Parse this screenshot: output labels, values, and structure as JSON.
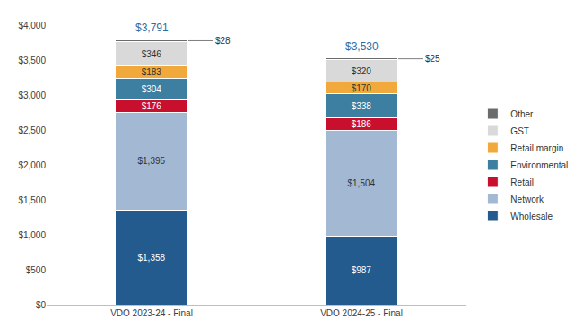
{
  "chart_data": {
    "type": "bar",
    "stacked": true,
    "data_labels": true,
    "grid": false,
    "legend": "right",
    "categories": [
      "VDO 2023-24 - Final",
      "VDO 2024-25 - Final"
    ],
    "series": [
      {
        "name": "Wholesale",
        "color": "#245b8f",
        "values": [
          1358,
          987
        ],
        "value_labels": [
          "$1,358",
          "$987"
        ]
      },
      {
        "name": "Network",
        "color": "#a2b8d3",
        "values": [
          1395,
          1504
        ],
        "value_labels": [
          "$1,395",
          "$1,504"
        ]
      },
      {
        "name": "Retail",
        "color": "#c8102e",
        "values": [
          176,
          186
        ],
        "value_labels": [
          "$176",
          "$186"
        ]
      },
      {
        "name": "Environmental",
        "color": "#3d7fa0",
        "values": [
          304,
          338
        ],
        "value_labels": [
          "$304",
          "$338"
        ]
      },
      {
        "name": "Retail margin",
        "color": "#f2a93b",
        "values": [
          183,
          170
        ],
        "value_labels": [
          "$183",
          "$170"
        ]
      },
      {
        "name": "GST",
        "color": "#d9d9d9",
        "values": [
          346,
          320
        ],
        "value_labels": [
          "$346",
          "$320"
        ]
      },
      {
        "name": "Other",
        "color": "#6b6b6b",
        "values": [
          28,
          25
        ],
        "value_labels": [
          "$28",
          "$25"
        ]
      }
    ],
    "totals": [
      3791,
      3530
    ],
    "total_labels": [
      "$3,791",
      "$3,530"
    ],
    "ylim": [
      0,
      4000
    ],
    "yticks": [
      {
        "value": 0,
        "label": "$0"
      },
      {
        "value": 500,
        "label": "$500"
      },
      {
        "value": 1000,
        "label": "$1,000"
      },
      {
        "value": 1500,
        "label": "$1,500"
      },
      {
        "value": 2000,
        "label": "$2,000"
      },
      {
        "value": 2500,
        "label": "$2,500"
      },
      {
        "value": 3000,
        "label": "$3,000"
      },
      {
        "value": 3500,
        "label": "$3,500"
      },
      {
        "value": 4000,
        "label": "$4,000"
      }
    ]
  }
}
